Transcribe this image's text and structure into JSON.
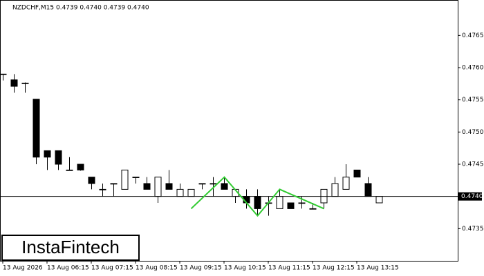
{
  "chart_data": {
    "type": "candlestick",
    "title": "NZDCHF,M15  0.4739 0.4740 0.4739 0.4740",
    "categories": [
      "13 Aug 2026",
      null,
      null,
      null,
      "13 Aug 06:15",
      null,
      null,
      null,
      "13 Aug 07:15",
      null,
      null,
      null,
      "13 Aug 08:15",
      null,
      null,
      null,
      "13 Aug 09:15",
      null,
      null,
      null,
      "13 Aug 10:15",
      null,
      null,
      null,
      "13 Aug 11:15",
      null,
      null,
      null,
      "13 Aug 12:15",
      null,
      null,
      null,
      "13 Aug 13:15",
      null,
      null
    ],
    "open": [
      0.4759,
      0.47581,
      0.47576,
      0.47551,
      0.47471,
      0.47471,
      0.47441,
      0.4745,
      0.4743,
      0.47411,
      0.4742,
      0.47411,
      0.4743,
      0.4742,
      0.474,
      0.4742,
      0.474,
      0.474,
      0.4742,
      0.4742,
      0.4742,
      0.474,
      0.474,
      0.474,
      0.4739,
      0.47381,
      0.4739,
      0.4739,
      0.47381,
      0.4739,
      0.474,
      0.47411,
      0.47441,
      0.4742,
      0.4739
    ],
    "high": [
      0.4759,
      0.4759,
      0.47577,
      0.47551,
      0.47471,
      0.47471,
      0.47461,
      0.4745,
      0.4743,
      0.4742,
      0.4742,
      0.47441,
      0.4743,
      0.4743,
      0.4743,
      0.47441,
      0.4742,
      0.47411,
      0.4742,
      0.4743,
      0.4743,
      0.47411,
      0.47411,
      0.47411,
      0.474,
      0.47411,
      0.4739,
      0.474,
      0.4739,
      0.47411,
      0.4743,
      0.4745,
      0.47441,
      0.4743,
      0.474
    ],
    "low": [
      0.4758,
      0.47561,
      0.47561,
      0.4745,
      0.47441,
      0.47441,
      0.4744,
      0.4744,
      0.47411,
      0.474,
      0.474,
      0.47411,
      0.4742,
      0.47411,
      0.4739,
      0.47411,
      0.474,
      0.474,
      0.47411,
      0.474,
      0.47411,
      0.4739,
      0.47381,
      0.4737,
      0.4737,
      0.47381,
      0.47381,
      0.47381,
      0.47381,
      0.47381,
      0.474,
      0.47411,
      0.4743,
      0.474,
      0.4739
    ],
    "close": [
      0.4759,
      0.47571,
      0.47576,
      0.47461,
      0.47461,
      0.4745,
      0.47441,
      0.47441,
      0.4742,
      0.47411,
      0.4742,
      0.47441,
      0.4743,
      0.47411,
      0.4743,
      0.47411,
      0.47411,
      0.47411,
      0.4742,
      0.4742,
      0.47411,
      0.47411,
      0.4739,
      0.47381,
      0.4739,
      0.474,
      0.47381,
      0.4739,
      0.47381,
      0.47411,
      0.4742,
      0.4743,
      0.4743,
      0.474,
      0.474
    ],
    "up_color": "#ffffff",
    "down_color": "#000000",
    "ylim": [
      0.473,
      0.47705
    ],
    "yticks": [
      0.4735,
      0.4745,
      {
        "value": 0.475,
        "label": "0.4750"
      },
      0.4755,
      {
        "value": 0.476,
        "label": "0.4760"
      },
      0.4765
    ],
    "current_price": {
      "value": 0.474,
      "label": "0.4740"
    },
    "pattern": {
      "color": "#33cc33",
      "x": [
        17,
        20,
        23,
        25,
        29
      ],
      "values": [
        0.47381,
        0.4743,
        0.4737,
        0.47411,
        0.47381
      ]
    },
    "logo": "InstaFintech"
  }
}
